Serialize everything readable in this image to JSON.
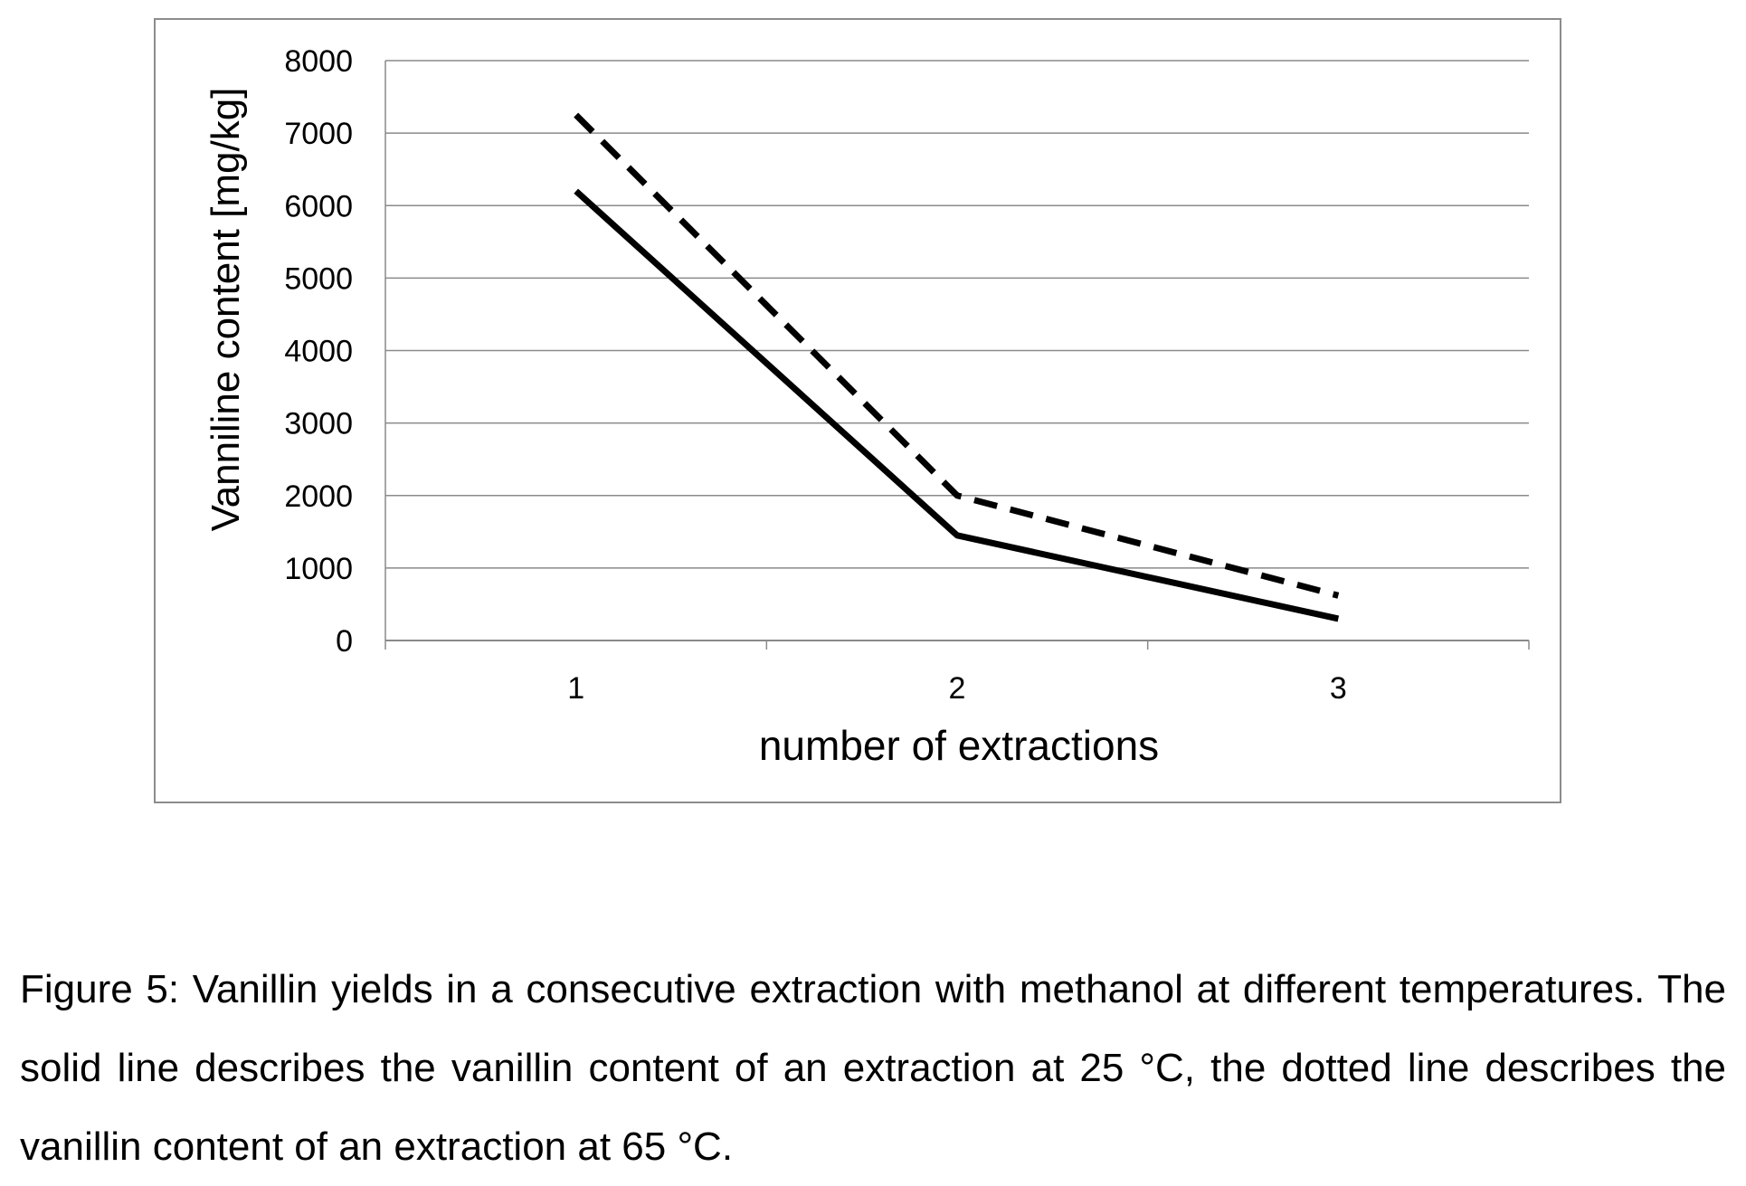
{
  "chart_data": {
    "type": "line",
    "categories": [
      "1",
      "2",
      "3"
    ],
    "xlabel": "number of extractions",
    "ylabel": "Vanniline content [mg/kg]",
    "ylim": [
      0,
      8000
    ],
    "yticks": [
      0,
      1000,
      2000,
      3000,
      4000,
      5000,
      6000,
      7000,
      8000
    ],
    "grid": true,
    "legend": "none",
    "series": [
      {
        "style": "solid",
        "color": "#000000",
        "values": [
          6200,
          1450,
          300
        ]
      },
      {
        "style": "dashed",
        "color": "#000000",
        "values": [
          7250,
          2000,
          620
        ]
      }
    ]
  },
  "caption": "Figure 5: Vanillin yields in a consecutive extraction with methanol at different temperatures. The solid line describes the vanillin content of an extraction at 25 °C, the dotted line describes the vanillin content of an extraction at 65 °C."
}
